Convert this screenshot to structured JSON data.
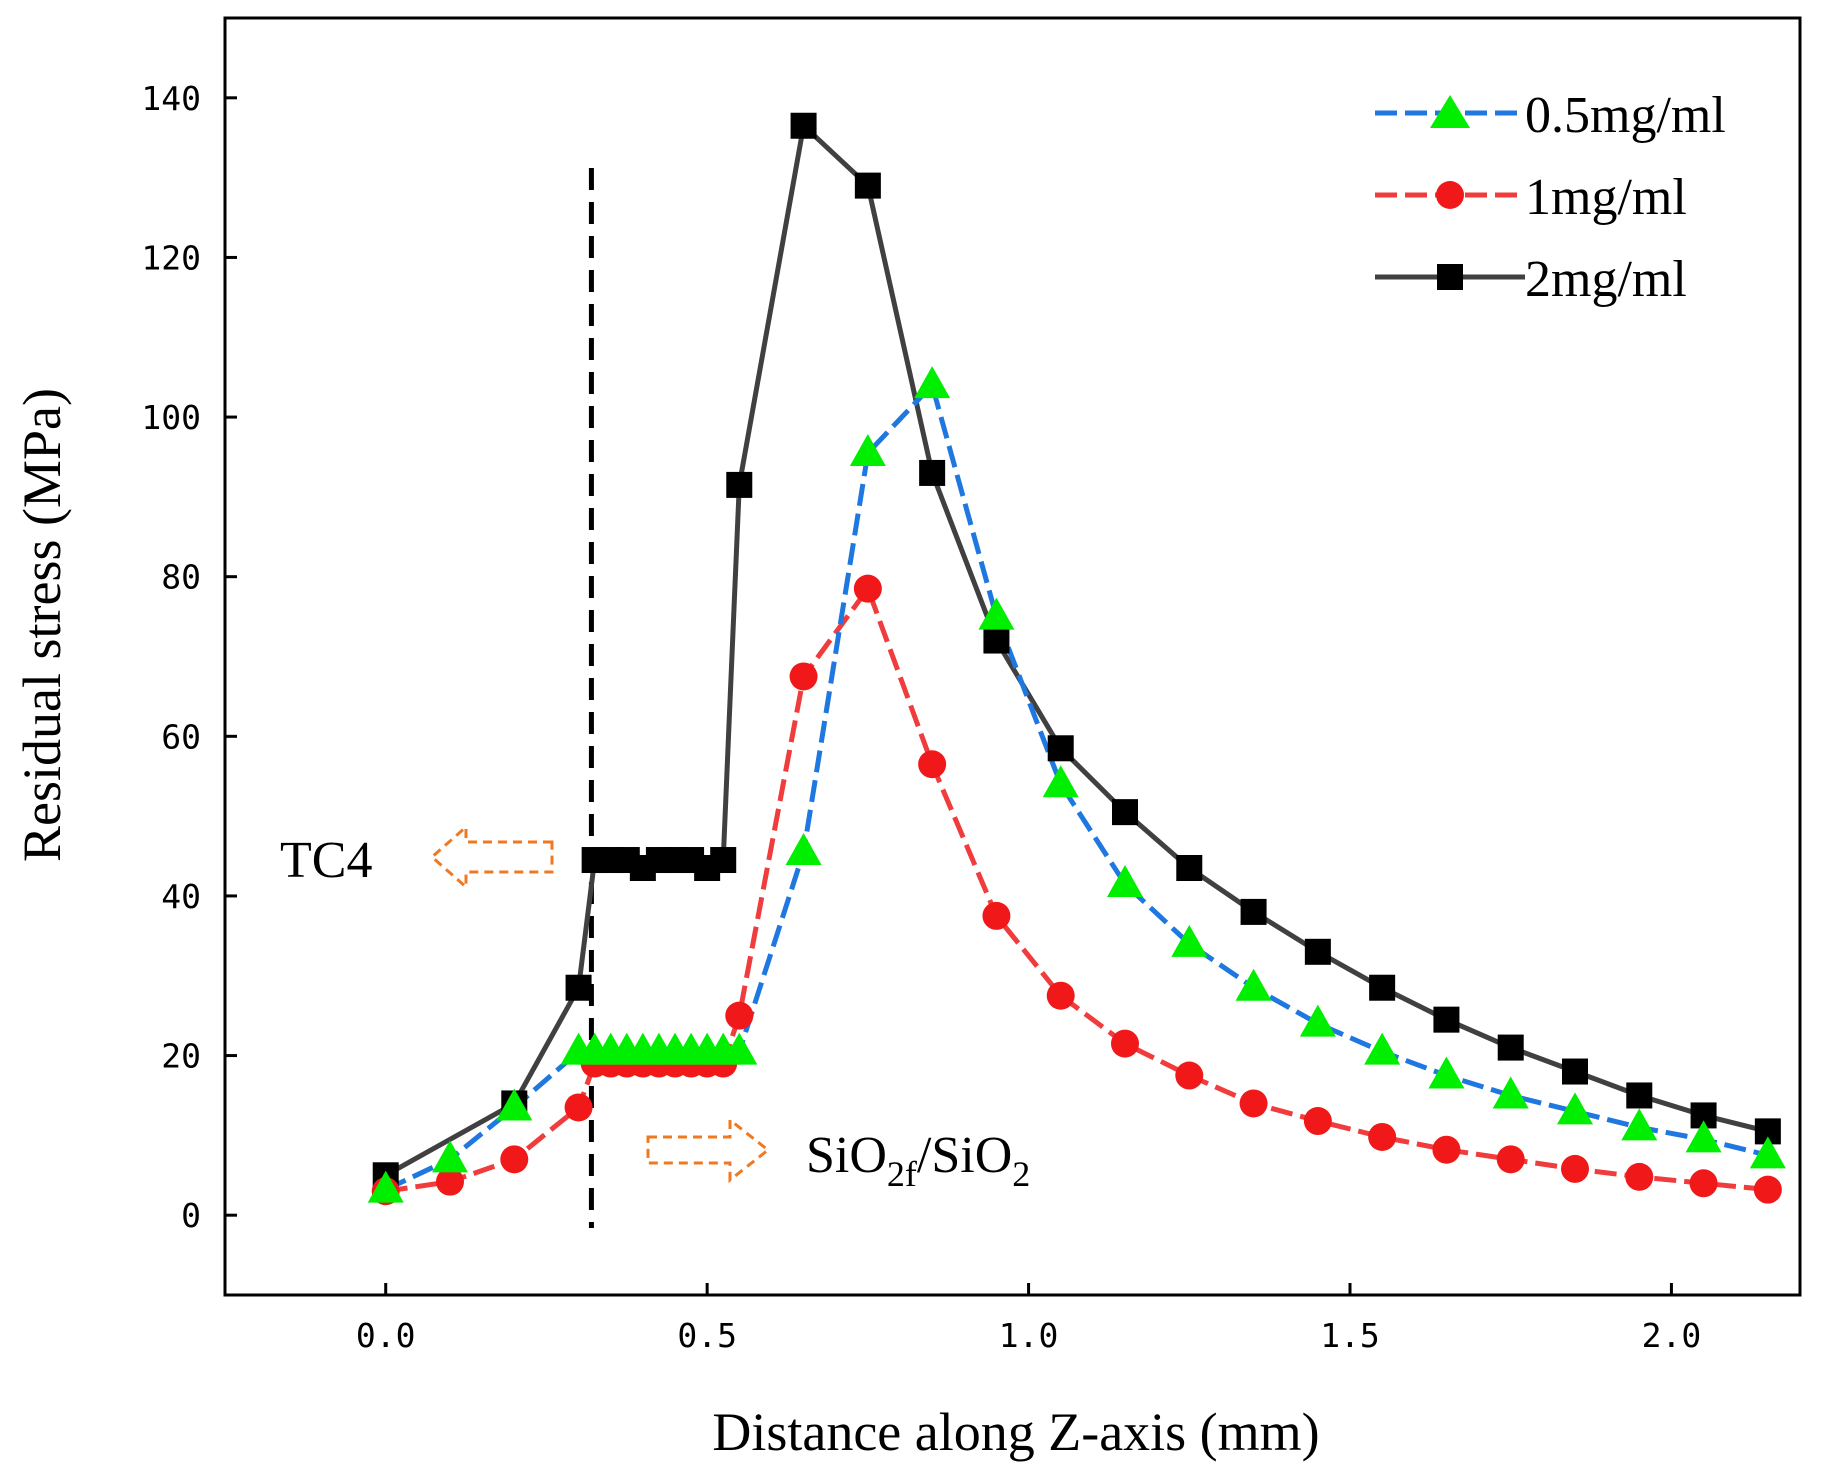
{
  "chart_data": {
    "type": "line",
    "title": "",
    "xlabel": "Distance along Z-axis (mm)",
    "ylabel": "Residual stress (MPa)",
    "xlim": [
      -0.25,
      2.2
    ],
    "ylim": [
      -10,
      150
    ],
    "xticks": [
      0.0,
      0.5,
      1.0,
      1.5,
      2.0
    ],
    "xtick_labels": [
      "0.0",
      "0.5",
      "1.0",
      "1.5",
      "2.0"
    ],
    "yticks": [
      0,
      20,
      40,
      60,
      80,
      100,
      120,
      140
    ],
    "ytick_labels": [
      "0",
      "20",
      "40",
      "60",
      "80",
      "100",
      "120",
      "140"
    ],
    "grid": false,
    "legend_position": "top-right",
    "divider_x": 0.32,
    "series": [
      {
        "name": "0.5mg/ml",
        "color": "#1f77e0",
        "marker_color": "#00ee00",
        "marker": "triangle",
        "line_style": "dashed",
        "x": [
          0.0,
          0.1,
          0.2,
          0.3,
          0.325,
          0.35,
          0.375,
          0.4,
          0.425,
          0.45,
          0.475,
          0.5,
          0.525,
          0.55,
          0.65,
          0.75,
          0.85,
          0.95,
          1.05,
          1.15,
          1.25,
          1.35,
          1.45,
          1.55,
          1.65,
          1.75,
          1.85,
          1.95,
          2.05,
          2.15
        ],
        "y": [
          3.2,
          7.0,
          13.5,
          20.5,
          20.5,
          20.5,
          20.5,
          20.5,
          20.5,
          20.5,
          20.5,
          20.5,
          20.5,
          20.5,
          45.5,
          95.5,
          104.0,
          75.0,
          54.0,
          41.5,
          34.0,
          28.5,
          24.0,
          20.5,
          17.5,
          15.0,
          13.0,
          11.0,
          9.5,
          7.5
        ]
      },
      {
        "name": "1mg/ml",
        "color": "#f03c3c",
        "marker_color": "#f01818",
        "marker": "circle",
        "line_style": "dashed",
        "x": [
          0.0,
          0.1,
          0.2,
          0.3,
          0.325,
          0.35,
          0.375,
          0.4,
          0.425,
          0.45,
          0.475,
          0.5,
          0.525,
          0.55,
          0.65,
          0.75,
          0.85,
          0.95,
          1.05,
          1.15,
          1.25,
          1.35,
          1.45,
          1.55,
          1.65,
          1.75,
          1.85,
          1.95,
          2.05,
          2.15
        ],
        "y": [
          3.0,
          4.2,
          7.0,
          13.5,
          19.0,
          19.0,
          19.0,
          19.0,
          19.0,
          19.0,
          19.0,
          19.0,
          19.0,
          25.0,
          67.5,
          78.5,
          56.5,
          37.5,
          27.5,
          21.5,
          17.5,
          14.0,
          11.8,
          9.8,
          8.2,
          7.0,
          5.8,
          4.8,
          4.0,
          3.2
        ]
      },
      {
        "name": "2mg/ml",
        "color": "#404040",
        "marker_color": "#000000",
        "marker": "square",
        "line_style": "solid",
        "x": [
          0.0,
          0.2,
          0.3,
          0.325,
          0.35,
          0.375,
          0.4,
          0.425,
          0.45,
          0.475,
          0.5,
          0.525,
          0.55,
          0.65,
          0.75,
          0.85,
          0.95,
          1.05,
          1.15,
          1.25,
          1.35,
          1.45,
          1.55,
          1.65,
          1.75,
          1.85,
          1.95,
          2.05,
          2.15
        ],
        "y": [
          5.0,
          14.0,
          28.5,
          44.5,
          44.5,
          44.5,
          43.5,
          44.5,
          44.5,
          44.5,
          43.5,
          44.5,
          91.5,
          136.5,
          129.0,
          93.0,
          72.0,
          58.5,
          50.5,
          43.5,
          38.0,
          33.0,
          28.5,
          24.5,
          21.0,
          18.0,
          15.0,
          12.5,
          10.5
        ]
      }
    ],
    "annotations": [
      {
        "id": "tc4",
        "text": "TC4",
        "arrow": "left",
        "arrow_color": "#f07820"
      },
      {
        "id": "sio2",
        "text_main": "SiO",
        "sub1": "2f",
        "text_mid": "/SiO",
        "sub2": "2",
        "arrow": "right",
        "arrow_color": "#f07820"
      }
    ]
  }
}
